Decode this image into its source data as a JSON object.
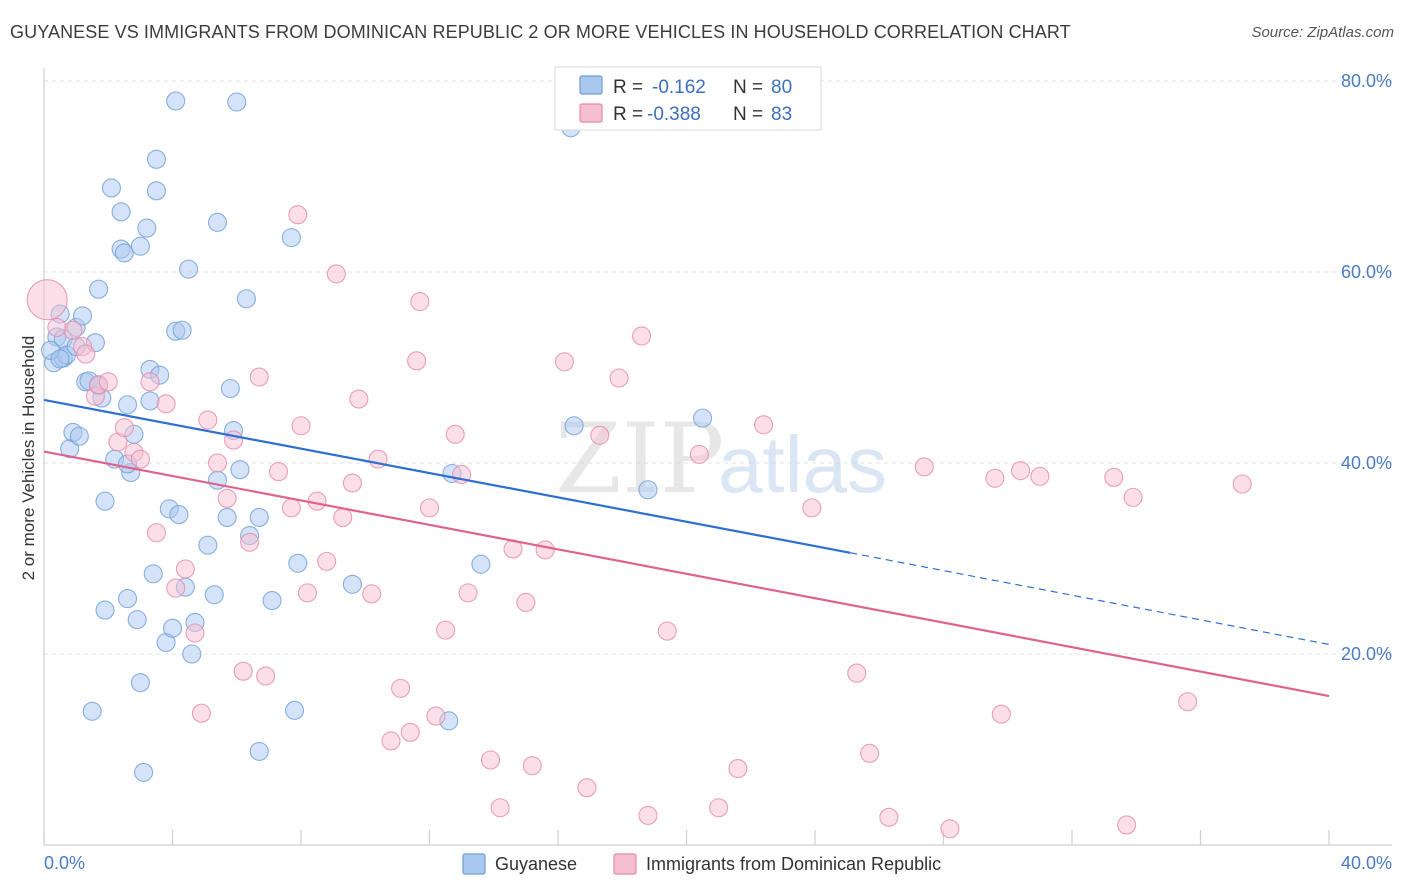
{
  "header": {
    "title": "GUYANESE VS IMMIGRANTS FROM DOMINICAN REPUBLIC 2 OR MORE VEHICLES IN HOUSEHOLD CORRELATION CHART",
    "source": "Source: ZipAtlas.com"
  },
  "watermark": {
    "zip": "ZIP",
    "atlas": "atlas"
  },
  "legend": {
    "rows": [
      {
        "r_label": "R =",
        "r_value": "-0.162",
        "n_label": "N =",
        "n_value": "80"
      },
      {
        "r_label": "R =",
        "r_value": "-0.388",
        "n_label": "N =",
        "n_value": "83"
      }
    ]
  },
  "colors": {
    "guyanese_fill": "#a9c8ef",
    "guyanese_stroke": "#6f9ed8",
    "guyanese_line": "#2f6fd0",
    "dominican_fill": "#f6bfd1",
    "dominican_stroke": "#e68aa8",
    "dominican_line": "#e0638f",
    "axis_text": "#4a7cc4",
    "grid": "#e2e2e2"
  },
  "chart_data": {
    "type": "scatter",
    "title": "GUYANESE VS IMMIGRANTS FROM DOMINICAN REPUBLIC 2 OR MORE VEHICLES IN HOUSEHOLD CORRELATION CHART",
    "xlabel": "",
    "ylabel": "2 or more Vehicles in Household",
    "xlim": [
      0,
      40
    ],
    "ylim": [
      0,
      82
    ],
    "x_tick_labels": [
      "0.0%",
      "40.0%"
    ],
    "y_ticks": [
      20,
      40,
      60,
      80
    ],
    "y_tick_labels": [
      "20.0%",
      "40.0%",
      "60.0%",
      "80.0%"
    ],
    "grid": true,
    "legend_position": "bottom",
    "series": [
      {
        "name": "Guyanese",
        "r": -0.162,
        "n": 80,
        "trend": {
          "x0": 0,
          "y0": 46.6,
          "x1_solid": 25.1,
          "y1_solid": 30.6,
          "x1": 40,
          "y1": 21.0
        },
        "points": [
          [
            0.3,
            50.5
          ],
          [
            0.4,
            53.2
          ],
          [
            0.5,
            55.6
          ],
          [
            0.6,
            51.0
          ],
          [
            0.6,
            53.0
          ],
          [
            0.7,
            51.3
          ],
          [
            0.8,
            41.5
          ],
          [
            0.9,
            43.2
          ],
          [
            1.0,
            54.2
          ],
          [
            1.1,
            42.8
          ],
          [
            1.2,
            55.4
          ],
          [
            1.3,
            48.5
          ],
          [
            1.4,
            48.6
          ],
          [
            1.5,
            14.0
          ],
          [
            1.6,
            52.6
          ],
          [
            1.7,
            48.1
          ],
          [
            1.7,
            58.2
          ],
          [
            1.8,
            46.8
          ],
          [
            1.9,
            36.0
          ],
          [
            1.9,
            24.6
          ],
          [
            2.1,
            68.8
          ],
          [
            2.2,
            40.4
          ],
          [
            2.4,
            62.4
          ],
          [
            2.4,
            66.3
          ],
          [
            2.5,
            62.0
          ],
          [
            2.6,
            46.1
          ],
          [
            2.6,
            25.8
          ],
          [
            2.7,
            39.0
          ],
          [
            2.8,
            43.0
          ],
          [
            2.9,
            23.6
          ],
          [
            3.0,
            62.7
          ],
          [
            3.0,
            17.0
          ],
          [
            3.1,
            7.6
          ],
          [
            3.2,
            64.6
          ],
          [
            3.3,
            49.8
          ],
          [
            3.3,
            46.5
          ],
          [
            3.4,
            28.4
          ],
          [
            3.5,
            68.5
          ],
          [
            3.5,
            71.8
          ],
          [
            3.8,
            21.2
          ],
          [
            3.9,
            35.2
          ],
          [
            4.0,
            22.7
          ],
          [
            4.1,
            53.8
          ],
          [
            4.1,
            77.9
          ],
          [
            4.2,
            34.6
          ],
          [
            4.3,
            53.9
          ],
          [
            4.4,
            27.0
          ],
          [
            4.5,
            60.3
          ],
          [
            4.6,
            20.0
          ],
          [
            4.7,
            23.3
          ],
          [
            5.1,
            31.4
          ],
          [
            5.3,
            26.2
          ],
          [
            5.4,
            38.2
          ],
          [
            5.4,
            65.2
          ],
          [
            5.7,
            34.3
          ],
          [
            5.8,
            47.8
          ],
          [
            5.9,
            43.4
          ],
          [
            6.0,
            77.8
          ],
          [
            6.1,
            39.3
          ],
          [
            6.3,
            57.2
          ],
          [
            6.4,
            32.4
          ],
          [
            6.7,
            34.3
          ],
          [
            6.7,
            9.8
          ],
          [
            7.1,
            25.6
          ],
          [
            7.7,
            63.6
          ],
          [
            7.8,
            14.1
          ],
          [
            7.9,
            29.5
          ],
          [
            9.6,
            27.3
          ],
          [
            12.6,
            13.0
          ],
          [
            12.7,
            38.9
          ],
          [
            13.6,
            29.4
          ],
          [
            16.4,
            75.1
          ],
          [
            16.5,
            43.9
          ],
          [
            18.8,
            37.2
          ],
          [
            20.5,
            44.7
          ],
          [
            0.2,
            51.8
          ],
          [
            0.5,
            50.9
          ],
          [
            1.0,
            52.2
          ],
          [
            2.6,
            39.9
          ],
          [
            3.6,
            49.2
          ]
        ]
      },
      {
        "name": "Immigrants from Dominican Republic",
        "r": -0.388,
        "n": 83,
        "trend": {
          "x0": 0,
          "y0": 41.2,
          "x1": 40,
          "y1": 15.6
        },
        "points": [
          [
            0.1,
            57.1
          ],
          [
            0.9,
            53.9
          ],
          [
            1.2,
            52.2
          ],
          [
            1.3,
            51.4
          ],
          [
            1.6,
            47.0
          ],
          [
            1.7,
            48.2
          ],
          [
            2.0,
            48.5
          ],
          [
            2.3,
            42.2
          ],
          [
            2.5,
            43.7
          ],
          [
            2.8,
            41.1
          ],
          [
            3.0,
            40.4
          ],
          [
            3.3,
            48.5
          ],
          [
            3.5,
            32.7
          ],
          [
            3.8,
            46.2
          ],
          [
            4.1,
            26.9
          ],
          [
            4.4,
            28.9
          ],
          [
            4.7,
            22.2
          ],
          [
            4.9,
            13.8
          ],
          [
            5.1,
            44.5
          ],
          [
            5.4,
            40.0
          ],
          [
            5.7,
            36.3
          ],
          [
            5.9,
            42.4
          ],
          [
            6.2,
            18.2
          ],
          [
            6.4,
            31.7
          ],
          [
            6.7,
            49.0
          ],
          [
            6.9,
            17.7
          ],
          [
            7.3,
            39.1
          ],
          [
            7.7,
            35.3
          ],
          [
            7.9,
            66.0
          ],
          [
            8.0,
            43.9
          ],
          [
            8.2,
            26.4
          ],
          [
            8.5,
            36.0
          ],
          [
            8.8,
            29.7
          ],
          [
            9.1,
            59.8
          ],
          [
            9.3,
            34.3
          ],
          [
            9.6,
            37.9
          ],
          [
            9.8,
            46.7
          ],
          [
            10.2,
            26.3
          ],
          [
            10.4,
            40.4
          ],
          [
            10.8,
            10.9
          ],
          [
            11.1,
            16.4
          ],
          [
            11.4,
            11.8
          ],
          [
            11.6,
            50.7
          ],
          [
            11.7,
            56.9
          ],
          [
            12.0,
            35.3
          ],
          [
            12.2,
            13.5
          ],
          [
            12.5,
            22.5
          ],
          [
            12.8,
            43.0
          ],
          [
            13.0,
            38.8
          ],
          [
            13.2,
            26.4
          ],
          [
            13.9,
            8.9
          ],
          [
            14.2,
            3.9
          ],
          [
            14.6,
            31.0
          ],
          [
            15.0,
            25.4
          ],
          [
            15.2,
            8.3
          ],
          [
            15.6,
            30.9
          ],
          [
            16.2,
            50.6
          ],
          [
            16.9,
            6.0
          ],
          [
            17.3,
            42.9
          ],
          [
            17.9,
            48.9
          ],
          [
            18.6,
            53.3
          ],
          [
            18.8,
            3.1
          ],
          [
            19.4,
            22.4
          ],
          [
            20.4,
            40.9
          ],
          [
            21.0,
            3.9
          ],
          [
            21.6,
            8.0
          ],
          [
            22.4,
            44.0
          ],
          [
            23.9,
            35.3
          ],
          [
            25.3,
            18.0
          ],
          [
            25.7,
            9.6
          ],
          [
            26.3,
            2.9
          ],
          [
            27.4,
            39.6
          ],
          [
            28.2,
            1.7
          ],
          [
            29.6,
            38.4
          ],
          [
            29.8,
            13.7
          ],
          [
            30.4,
            39.2
          ],
          [
            31.0,
            38.6
          ],
          [
            33.3,
            38.5
          ],
          [
            33.7,
            2.1
          ],
          [
            33.9,
            36.4
          ],
          [
            35.6,
            15.0
          ],
          [
            37.3,
            37.8
          ],
          [
            0.4,
            54.2
          ]
        ]
      }
    ]
  }
}
